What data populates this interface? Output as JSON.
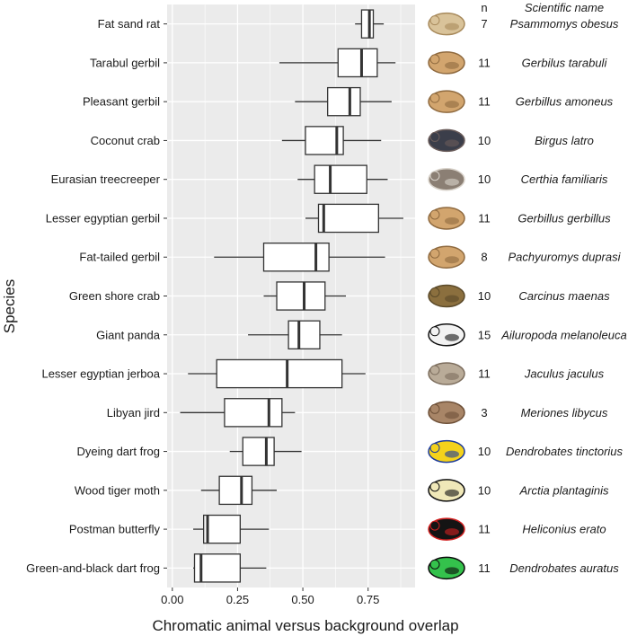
{
  "chart_data": {
    "type": "boxplot",
    "title": "",
    "xlabel": "Chromatic animal versus background overlap",
    "ylabel": "Species",
    "xlim": [
      -0.02,
      0.93
    ],
    "xticks": [
      0.0,
      0.25,
      0.5,
      0.75
    ],
    "xtick_labels": [
      "0.00",
      "0.25",
      "0.50",
      "0.75"
    ],
    "grid": true,
    "n_header": "n",
    "sci_header": "Scientific name",
    "colors": {
      "panel": "#ebebeb",
      "grid": "#ffffff",
      "box_fill": "#ffffff",
      "box_stroke": "#333333",
      "median": "#333333"
    },
    "species": [
      {
        "name": "Fat sand rat",
        "scientific": "Psammomys obesus",
        "n": 7,
        "whisker_low": 0.7,
        "q1": 0.725,
        "median": 0.755,
        "q3": 0.77,
        "whisker_high": 0.81,
        "icon": "sand-rat-photo"
      },
      {
        "name": "Tarabul gerbil",
        "scientific": "Gerbilus tarabuli",
        "n": 11,
        "whisker_low": 0.41,
        "q1": 0.635,
        "median": 0.725,
        "q3": 0.785,
        "whisker_high": 0.855,
        "icon": "gerbil-photo"
      },
      {
        "name": "Pleasant gerbil",
        "scientific": "Gerbillus amoneus",
        "n": 11,
        "whisker_low": 0.47,
        "q1": 0.595,
        "median": 0.68,
        "q3": 0.72,
        "whisker_high": 0.84,
        "icon": "gerbil-photo"
      },
      {
        "name": "Coconut crab",
        "scientific": "Birgus latro",
        "n": 10,
        "whisker_low": 0.42,
        "q1": 0.51,
        "median": 0.63,
        "q3": 0.655,
        "whisker_high": 0.8,
        "icon": "coconut-crab-photo"
      },
      {
        "name": "Eurasian treecreeper",
        "scientific": "Certhia familiaris",
        "n": 10,
        "whisker_low": 0.48,
        "q1": 0.545,
        "median": 0.605,
        "q3": 0.745,
        "whisker_high": 0.825,
        "icon": "treecreeper-photo"
      },
      {
        "name": "Lesser egyptian gerbil",
        "scientific": "Gerbillus gerbillus",
        "n": 11,
        "whisker_low": 0.51,
        "q1": 0.56,
        "median": 0.58,
        "q3": 0.79,
        "whisker_high": 0.885,
        "icon": "gerbil-photo"
      },
      {
        "name": "Fat-tailed gerbil",
        "scientific": "Pachyuromys duprasi",
        "n": 8,
        "whisker_low": 0.16,
        "q1": 0.35,
        "median": 0.55,
        "q3": 0.6,
        "whisker_high": 0.815,
        "icon": "gerbil-photo"
      },
      {
        "name": "Green shore crab",
        "scientific": "Carcinus maenas",
        "n": 10,
        "whisker_low": 0.35,
        "q1": 0.4,
        "median": 0.505,
        "q3": 0.585,
        "whisker_high": 0.665,
        "icon": "shore-crab-photo"
      },
      {
        "name": "Giant panda",
        "scientific": "Ailuropoda melanoleuca",
        "n": 15,
        "whisker_low": 0.29,
        "q1": 0.445,
        "median": 0.485,
        "q3": 0.565,
        "whisker_high": 0.65,
        "icon": "panda-photo"
      },
      {
        "name": "Lesser egyptian jerboa",
        "scientific": "Jaculus jaculus",
        "n": 11,
        "whisker_low": 0.06,
        "q1": 0.17,
        "median": 0.44,
        "q3": 0.65,
        "whisker_high": 0.74,
        "icon": "jerboa-photo"
      },
      {
        "name": "Libyan jird",
        "scientific": "Meriones libycus",
        "n": 3,
        "whisker_low": 0.03,
        "q1": 0.2,
        "median": 0.37,
        "q3": 0.42,
        "whisker_high": 0.47,
        "icon": "jird-photo"
      },
      {
        "name": "Dyeing dart frog",
        "scientific": "Dendrobates tinctorius",
        "n": 10,
        "whisker_low": 0.22,
        "q1": 0.27,
        "median": 0.36,
        "q3": 0.39,
        "whisker_high": 0.495,
        "icon": "dyeing-dart-frog-photo"
      },
      {
        "name": "Wood tiger moth",
        "scientific": "Arctia plantaginis",
        "n": 10,
        "whisker_low": 0.11,
        "q1": 0.18,
        "median": 0.265,
        "q3": 0.305,
        "whisker_high": 0.4,
        "icon": "tiger-moth-photo"
      },
      {
        "name": "Postman butterfly",
        "scientific": "Heliconius erato",
        "n": 11,
        "whisker_low": 0.08,
        "q1": 0.12,
        "median": 0.135,
        "q3": 0.26,
        "whisker_high": 0.37,
        "icon": "postman-butterfly-photo"
      },
      {
        "name": "Green-and-black dart frog",
        "scientific": "Dendrobates auratus",
        "n": 11,
        "whisker_low": 0.08,
        "q1": 0.085,
        "median": 0.11,
        "q3": 0.26,
        "whisker_high": 0.36,
        "icon": "green-black-dart-frog-photo"
      }
    ]
  }
}
